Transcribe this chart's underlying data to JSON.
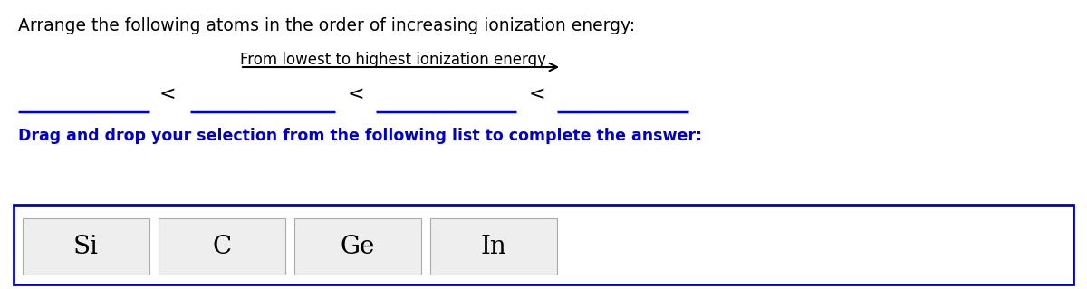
{
  "title": "Arrange the following atoms in the order of increasing ionization energy:",
  "arrow_label": "From lowest to highest ionization energy",
  "line_color": "#0000cc",
  "drag_label": "Drag and drop your selection from the following list to complete the answer:",
  "drag_label_color": "#0000cc",
  "elements": [
    "Si",
    "C",
    "Ge",
    "In"
  ],
  "box_border_color": "#0000cc",
  "box_fill_color": "#eeeeee",
  "background_color": "#ffffff",
  "title_fontsize": 13.5,
  "arrow_label_fontsize": 12,
  "less_than_fontsize": 16,
  "drag_label_fontsize": 12.5,
  "element_fontsize": 20
}
